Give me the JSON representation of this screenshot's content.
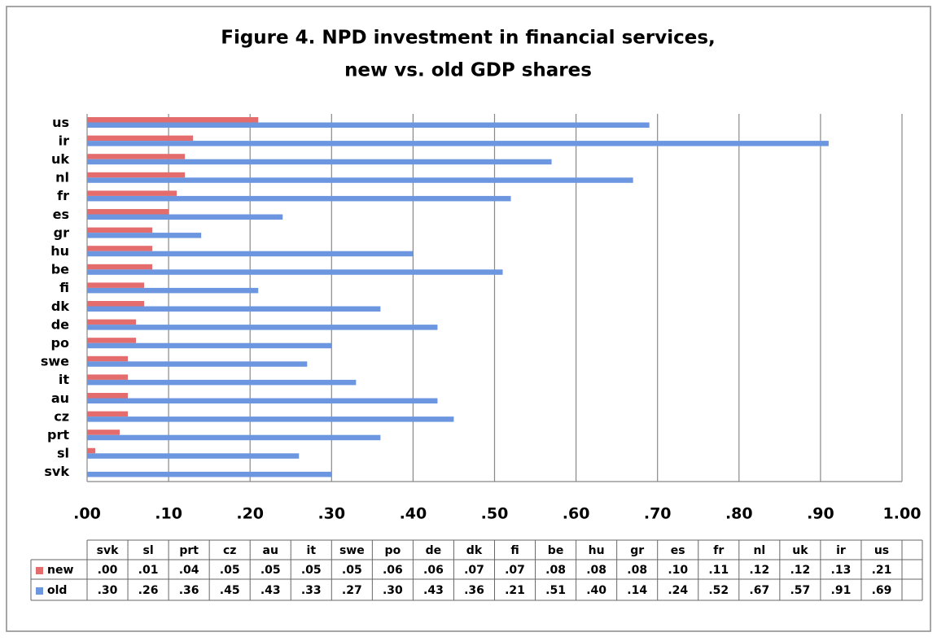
{
  "chart_data": {
    "type": "bar",
    "orientation": "horizontal",
    "title": [
      "Figure 4. NPD investment in financial services,",
      "new vs. old GDP shares"
    ],
    "categories": [
      "svk",
      "sl",
      "prt",
      "cz",
      "au",
      "it",
      "swe",
      "po",
      "de",
      "dk",
      "fi",
      "be",
      "hu",
      "gr",
      "es",
      "fr",
      "nl",
      "uk",
      "ir",
      "us"
    ],
    "series": [
      {
        "name": "new",
        "color": "#e46c6c",
        "values": [
          0.0,
          0.01,
          0.04,
          0.05,
          0.05,
          0.05,
          0.05,
          0.06,
          0.06,
          0.07,
          0.07,
          0.08,
          0.08,
          0.08,
          0.1,
          0.11,
          0.12,
          0.12,
          0.13,
          0.21
        ],
        "value_labels": [
          ".00",
          ".01",
          ".04",
          ".05",
          ".05",
          ".05",
          ".05",
          ".06",
          ".06",
          ".07",
          ".07",
          ".08",
          ".08",
          ".08",
          ".10",
          ".11",
          ".12",
          ".12",
          ".13",
          ".21"
        ]
      },
      {
        "name": "old",
        "color": "#6c97e0",
        "values": [
          0.3,
          0.26,
          0.36,
          0.45,
          0.43,
          0.33,
          0.27,
          0.3,
          0.43,
          0.36,
          0.21,
          0.51,
          0.4,
          0.14,
          0.24,
          0.52,
          0.67,
          0.57,
          0.91,
          0.69
        ],
        "value_labels": [
          ".30",
          ".26",
          ".36",
          ".45",
          ".43",
          ".33",
          ".27",
          ".30",
          ".43",
          ".36",
          ".21",
          ".51",
          ".40",
          ".14",
          ".24",
          ".52",
          ".67",
          ".57",
          ".91",
          ".69"
        ]
      }
    ],
    "xlim": [
      0,
      1
    ],
    "xticks": [
      {
        "value": 0,
        "label": ".00"
      },
      {
        "value": 0.1,
        "label": ".10"
      },
      {
        "value": 0.2,
        "label": ".20"
      },
      {
        "value": 0.3,
        "label": ".30"
      },
      {
        "value": 0.4,
        "label": ".40"
      },
      {
        "value": 0.5,
        "label": ".50"
      },
      {
        "value": 0.6,
        "label": ".60"
      },
      {
        "value": 0.7,
        "label": ".70"
      },
      {
        "value": 0.8,
        "label": ".80"
      },
      {
        "value": 0.9,
        "label": ".90"
      },
      {
        "value": 1,
        "label": "1.00"
      }
    ],
    "grid": true
  }
}
